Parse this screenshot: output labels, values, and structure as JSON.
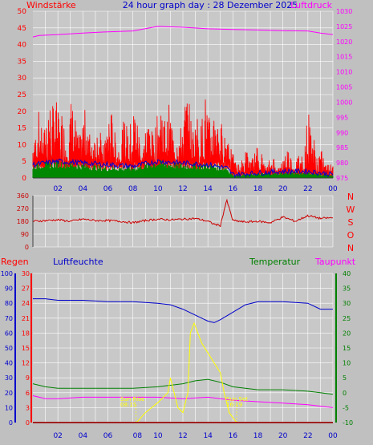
{
  "colors": {
    "bg": "#c0c0c0",
    "plot_bg": "#c8c8c8",
    "grid": "#ffffff",
    "wind": "#ff0000",
    "gust": "#0000cc",
    "green": "#008800",
    "pressure": "#ff00ff",
    "direction": "#cc0000",
    "humidity": "#0000cc",
    "temperature": "#008000",
    "dewpoint": "#ff00ff",
    "rain": "#ff0000",
    "sun": "#ffff00"
  },
  "header": {
    "left": "Windstärke",
    "center": "24 hour graph day : 28 Dezember 2025",
    "right": "Luftdruck"
  },
  "mid_labels": {
    "compass": [
      "N",
      "W",
      "S",
      "O",
      "N"
    ]
  },
  "lower_header": {
    "rain": "Regen",
    "humidity": "Luftfeuchte",
    "temperature": "Temperatur",
    "dewpoint": "Taupunkt"
  },
  "sun": {
    "rise_label": "Sun Rise",
    "rise_time": "08:15",
    "set_label": "Sun Set",
    "set_time": "16:19"
  },
  "chart_data": [
    {
      "type": "line",
      "x_ticks": [
        "02",
        "04",
        "06",
        "08",
        "10",
        "12",
        "14",
        "16",
        "18",
        "20",
        "22",
        "00"
      ],
      "y_left_ticks": [
        0,
        5,
        10,
        15,
        20,
        25,
        30,
        35,
        40,
        45,
        50
      ],
      "y_right_ticks": [
        975,
        980,
        985,
        990,
        995,
        1000,
        1005,
        1010,
        1015,
        1020,
        1025,
        1030
      ],
      "ylim_left": [
        0,
        50
      ],
      "ylim_right": [
        975,
        1030
      ],
      "x_range_hours": [
        0,
        24
      ],
      "series": [
        {
          "name": "Luftdruck",
          "axis": "right",
          "x": [
            0,
            0.5,
            2,
            4,
            6,
            8,
            10,
            12,
            14,
            16,
            18,
            20,
            22,
            23,
            24
          ],
          "y": [
            1021.5,
            1022,
            1022.3,
            1022.8,
            1023.2,
            1023.5,
            1025,
            1024.7,
            1024.2,
            1024,
            1023.8,
            1023.6,
            1023.5,
            1022.8,
            1022.3
          ]
        },
        {
          "name": "Windstärke",
          "axis": "left",
          "peaks": [
            {
              "x": 0.5,
              "y": 16
            },
            {
              "x": 1.3,
              "y": 22
            },
            {
              "x": 1.8,
              "y": 23
            },
            {
              "x": 2.3,
              "y": 17
            },
            {
              "x": 3.1,
              "y": 22
            },
            {
              "x": 4.2,
              "y": 18
            },
            {
              "x": 5.1,
              "y": 14
            },
            {
              "x": 6.2,
              "y": 18
            },
            {
              "x": 7.4,
              "y": 15
            },
            {
              "x": 8.1,
              "y": 20
            },
            {
              "x": 9.3,
              "y": 16
            },
            {
              "x": 10.2,
              "y": 22
            },
            {
              "x": 10.9,
              "y": 18
            },
            {
              "x": 11.6,
              "y": 14
            },
            {
              "x": 12.3,
              "y": 23
            },
            {
              "x": 13.1,
              "y": 17
            },
            {
              "x": 13.8,
              "y": 22
            },
            {
              "x": 14.6,
              "y": 20
            },
            {
              "x": 15.1,
              "y": 13
            },
            {
              "x": 15.6,
              "y": 12
            },
            {
              "x": 16.2,
              "y": 5
            },
            {
              "x": 17.1,
              "y": 8
            },
            {
              "x": 18.0,
              "y": 10
            },
            {
              "x": 19.2,
              "y": 6
            },
            {
              "x": 20.4,
              "y": 9
            },
            {
              "x": 21.3,
              "y": 7
            },
            {
              "x": 22.1,
              "y": 20
            },
            {
              "x": 23.0,
              "y": 8
            },
            {
              "x": 23.8,
              "y": 5
            }
          ]
        },
        {
          "x": [
            0,
            2,
            4,
            6,
            8,
            10,
            12,
            14,
            15.5,
            16,
            18,
            20,
            22,
            24
          ],
          "y": [
            4,
            5,
            4.5,
            4,
            3.5,
            5,
            4.5,
            4,
            3,
            1,
            1.5,
            2,
            2,
            1
          ]
        },
        {
          "x": [
            0,
            2,
            4,
            6,
            8,
            10,
            12,
            14,
            15.5,
            16,
            18,
            20,
            22,
            24
          ],
          "y": [
            2.5,
            3,
            2.5,
            2,
            2,
            3,
            2.5,
            2.5,
            2,
            0.5,
            0.8,
            1,
            1,
            0.5
          ]
        }
      ]
    },
    {
      "type": "line",
      "x_ticks": [
        "02",
        "04",
        "06",
        "08",
        "10",
        "12",
        "14",
        "16",
        "18",
        "20",
        "22",
        "00"
      ],
      "y_ticks": [
        0,
        90,
        180,
        270,
        360
      ],
      "ylim": [
        0,
        360
      ],
      "series": [
        {
          "x": [
            0,
            1,
            2,
            3,
            4,
            5,
            6,
            7,
            8,
            9,
            10,
            11,
            12,
            13,
            14,
            14.5,
            15,
            15.5,
            16,
            17,
            18,
            19,
            20,
            21,
            22,
            23,
            24
          ],
          "y": [
            180,
            185,
            190,
            180,
            195,
            185,
            185,
            180,
            170,
            185,
            195,
            190,
            195,
            200,
            180,
            160,
            150,
            330,
            185,
            175,
            180,
            170,
            210,
            180,
            220,
            200,
            205
          ]
        }
      ]
    },
    {
      "type": "line",
      "x_ticks": [
        "02",
        "04",
        "06",
        "08",
        "10",
        "12",
        "14",
        "16",
        "18",
        "20",
        "22",
        "00"
      ],
      "y_left_outer_ticks": [
        0,
        10,
        20,
        30,
        40,
        50,
        60,
        70,
        80,
        90,
        100
      ],
      "y_left_inner_ticks": [
        0,
        3,
        6,
        9,
        12,
        15,
        18,
        21,
        24,
        27,
        30
      ],
      "y_right_ticks": [
        -10,
        -5,
        0,
        5,
        10,
        15,
        20,
        25,
        30,
        35,
        40
      ],
      "ylim_outer": [
        0,
        100
      ],
      "ylim_inner": [
        0,
        30
      ],
      "ylim_right": [
        -10,
        40
      ],
      "series": [
        {
          "name": "Luftfeuchte",
          "axis": "left_outer",
          "x": [
            0,
            1,
            2,
            4,
            6,
            8,
            10,
            11,
            12,
            13,
            13.5,
            14,
            14.5,
            15,
            16,
            17,
            18,
            20,
            22,
            23,
            24
          ],
          "y": [
            83,
            83,
            82,
            82,
            81,
            81,
            80,
            79,
            76,
            72,
            70,
            68,
            67,
            69,
            74,
            79,
            81,
            81,
            80,
            76,
            76
          ]
        },
        {
          "name": "Temperatur",
          "axis": "right",
          "x": [
            0,
            1,
            2,
            4,
            6,
            8,
            10,
            12,
            13,
            14,
            15,
            16,
            18,
            20,
            22,
            24
          ],
          "y": [
            3,
            2,
            1.5,
            1.5,
            1.5,
            1.5,
            2,
            3,
            4,
            4.5,
            3.5,
            2,
            1,
            1,
            0.5,
            -0.5
          ]
        },
        {
          "name": "Taupunkt",
          "axis": "right",
          "x": [
            0,
            1,
            2,
            4,
            6,
            8,
            10,
            12,
            14,
            16,
            18,
            20,
            22,
            24
          ],
          "y": [
            -1,
            -2,
            -2,
            -1.5,
            -1.5,
            -1.5,
            -1.5,
            -2,
            -1.5,
            -2.5,
            -3,
            -3.5,
            -4,
            -5
          ]
        },
        {
          "name": "Regen",
          "axis": "left_inner",
          "x": [
            0,
            24
          ],
          "y": [
            0,
            0
          ]
        },
        {
          "x": [
            8.3,
            9,
            10,
            10.8,
            11,
            11.3,
            11.6,
            12,
            12.4,
            12.6,
            12.9,
            13.2,
            13.5,
            14,
            14.5,
            15,
            15.3,
            15.7,
            16.3
          ],
          "y": [
            0,
            2,
            4,
            6,
            9,
            6,
            3,
            2,
            6,
            18,
            20,
            18,
            16,
            14,
            12,
            10,
            6,
            2,
            0
          ]
        }
      ]
    }
  ]
}
